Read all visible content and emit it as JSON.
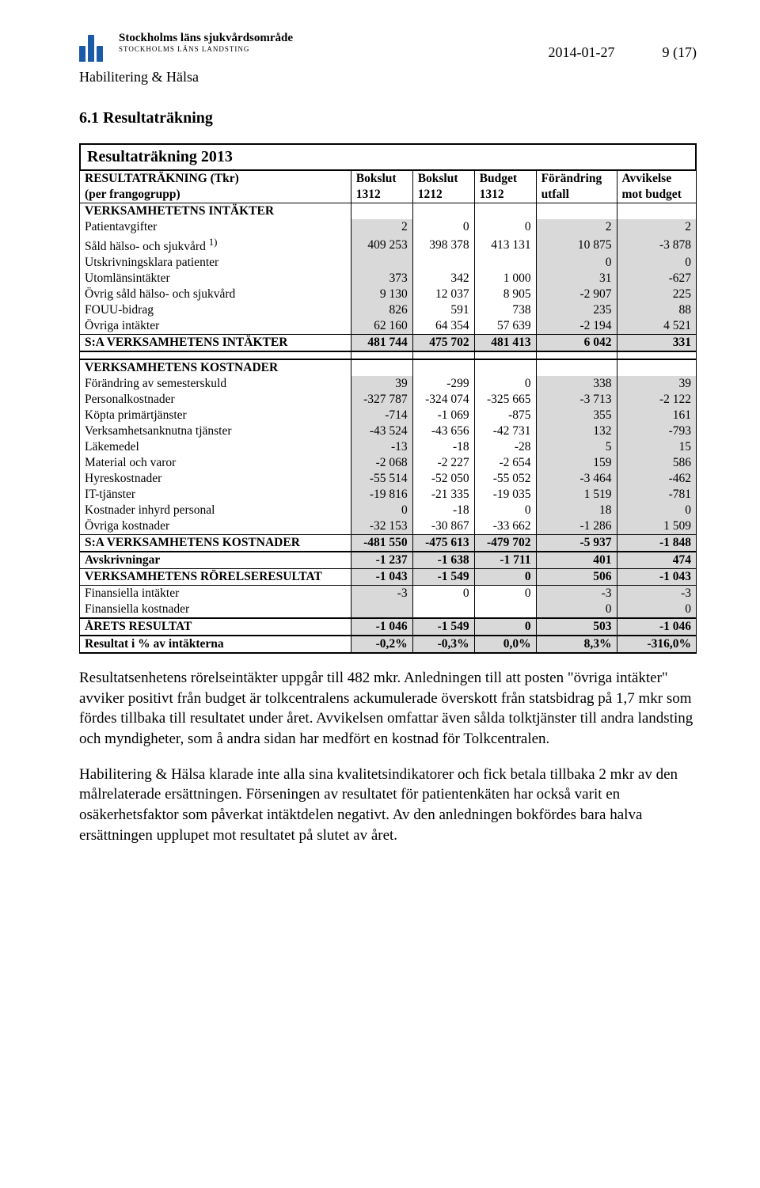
{
  "header": {
    "logo_line1": "Stockholms läns sjukvårdsområde",
    "logo_line2": "STOCKHOLMS LÄNS LANDSTING",
    "date": "2014-01-27",
    "page": "9 (17)",
    "subheader": "Habilitering & Hälsa"
  },
  "section": {
    "number_title": "6.1 Resultaträkning",
    "table_title": "Resultaträkning 2013"
  },
  "columns": {
    "h1a": "RESULTATRÄKNING (Tkr)",
    "h1b": "(per frangogrupp)",
    "h2a": "Bokslut",
    "h2b": "1312",
    "h3a": "Bokslut",
    "h3b": "1212",
    "h4a": "Budget",
    "h4b": "1312",
    "h5a": "Förändring",
    "h5b": "utfall",
    "h6a": "Avvikelse",
    "h6b": "mot budget"
  },
  "rows": {
    "verk_int_hdr": "VERKSAMHETETNS INTÄKTER",
    "patientavgifter": {
      "label": "Patientavgifter",
      "c1": "2",
      "c2": "0",
      "c3": "0",
      "c4": "2",
      "c5": "2"
    },
    "sald_halso": {
      "label": "Såld hälso- och sjukvård",
      "sup": "1)",
      "c1": "409 253",
      "c2": "398 378",
      "c3": "413 131",
      "c4": "10 875",
      "c5": "-3 878"
    },
    "utskr": {
      "label": "Utskrivningsklara patienter",
      "c1": "",
      "c2": "",
      "c3": "",
      "c4": "0",
      "c5": "0"
    },
    "utom": {
      "label": "Utomlänsintäkter",
      "c1": "373",
      "c2": "342",
      "c3": "1 000",
      "c4": "31",
      "c5": "-627"
    },
    "ovrig_sald": {
      "label": "Övrig såld hälso- och sjukvård",
      "c1": "9 130",
      "c2": "12 037",
      "c3": "8 905",
      "c4": "-2 907",
      "c5": "225"
    },
    "fouu": {
      "label": "FOUU-bidrag",
      "c1": "826",
      "c2": "591",
      "c3": "738",
      "c4": "235",
      "c5": "88"
    },
    "ovriga_int": {
      "label": "Övriga intäkter",
      "c1": "62 160",
      "c2": "64 354",
      "c3": "57 639",
      "c4": "-2 194",
      "c5": "4 521"
    },
    "sa_int": {
      "label": "S:A VERKSAMHETENS INTÄKTER",
      "c1": "481 744",
      "c2": "475 702",
      "c3": "481 413",
      "c4": "6 042",
      "c5": "331"
    },
    "verk_kost_hdr": "VERKSAMHETENS KOSTNADER",
    "semester": {
      "label": "Förändring av semesterskuld",
      "c1": "39",
      "c2": "-299",
      "c3": "0",
      "c4": "338",
      "c5": "39"
    },
    "personal": {
      "label": "Personalkostnader",
      "c1": "-327 787",
      "c2": "-324 074",
      "c3": "-325 665",
      "c4": "-3 713",
      "c5": "-2 122"
    },
    "kopta": {
      "label": "Köpta primärtjänster",
      "c1": "-714",
      "c2": "-1 069",
      "c3": "-875",
      "c4": "355",
      "c5": "161"
    },
    "anknutna": {
      "label": "Verksamhetsanknutna tjänster",
      "c1": "-43 524",
      "c2": "-43 656",
      "c3": "-42 731",
      "c4": "132",
      "c5": "-793"
    },
    "lakemedel": {
      "label": "Läkemedel",
      "c1": "-13",
      "c2": "-18",
      "c3": "-28",
      "c4": "5",
      "c5": "15"
    },
    "material": {
      "label": "Material och varor",
      "c1": "-2 068",
      "c2": "-2 227",
      "c3": "-2 654",
      "c4": "159",
      "c5": "586"
    },
    "hyres": {
      "label": "Hyreskostnader",
      "c1": "-55 514",
      "c2": "-52 050",
      "c3": "-55 052",
      "c4": "-3 464",
      "c5": "-462"
    },
    "it": {
      "label": "IT-tjänster",
      "c1": "-19 816",
      "c2": "-21 335",
      "c3": "-19 035",
      "c4": "1 519",
      "c5": "-781"
    },
    "inhyrd": {
      "label": "Kostnader inhyrd personal",
      "c1": "0",
      "c2": "-18",
      "c3": "0",
      "c4": "18",
      "c5": "0"
    },
    "ovriga_kost": {
      "label": "Övriga kostnader",
      "c1": "-32 153",
      "c2": "-30 867",
      "c3": "-33 662",
      "c4": "-1 286",
      "c5": "1 509"
    },
    "sa_kost": {
      "label": "S:A VERKSAMHETENS KOSTNADER",
      "c1": "-481 550",
      "c2": "-475 613",
      "c3": "-479 702",
      "c4": "-5 937",
      "c5": "-1 848"
    },
    "avskr": {
      "label": "Avskrivningar",
      "c1": "-1 237",
      "c2": "-1 638",
      "c3": "-1 711",
      "c4": "401",
      "c5": "474"
    },
    "rorelse": {
      "label": "VERKSAMHETENS RÖRELSERESULTAT",
      "c1": "-1 043",
      "c2": "-1 549",
      "c3": "0",
      "c4": "506",
      "c5": "-1 043"
    },
    "fin_int": {
      "label": "Finansiella intäkter",
      "c1": "-3",
      "c2": "0",
      "c3": "0",
      "c4": "-3",
      "c5": "-3"
    },
    "fin_kost": {
      "label": "Finansiella kostnader",
      "c1": "",
      "c2": "",
      "c3": "",
      "c4": "0",
      "c5": "0"
    },
    "arets": {
      "label": "ÅRETS RESULTAT",
      "c1": "-1 046",
      "c2": "-1 549",
      "c3": "0",
      "c4": "503",
      "c5": "-1 046"
    },
    "resultat_proc": {
      "label": "Resultat i % av intäkterna",
      "c1": "-0,2%",
      "c2": "-0,3%",
      "c3": "0,0%",
      "c4": "8,3%",
      "c5": "-316,0%"
    }
  },
  "paragraphs": {
    "p1": "Resultatsenhetens rörelseintäkter uppgår till 482 mkr. Anledningen till att posten \"övriga intäkter\" avviker positivt från budget är tolkcentralens ackumulerade överskott från statsbidrag på 1,7 mkr som fördes tillbaka till resultatet under året. Avvikelsen omfattar även sålda tolktjänster till andra landsting och myndigheter, som å andra sidan har medfört en kostnad för Tolkcentralen.",
    "p2": "Habilitering & Hälsa klarade inte alla sina kvalitetsindikatorer och fick betala tillbaka 2 mkr av den målrelaterade ersättningen. Förseningen av resultatet för patientenkäten har också varit en osäkerhetsfaktor som påverkat intäktdelen negativt. Av den anledningen bokfördes bara halva ersättningen upplupet mot resultatet på slutet av året."
  }
}
